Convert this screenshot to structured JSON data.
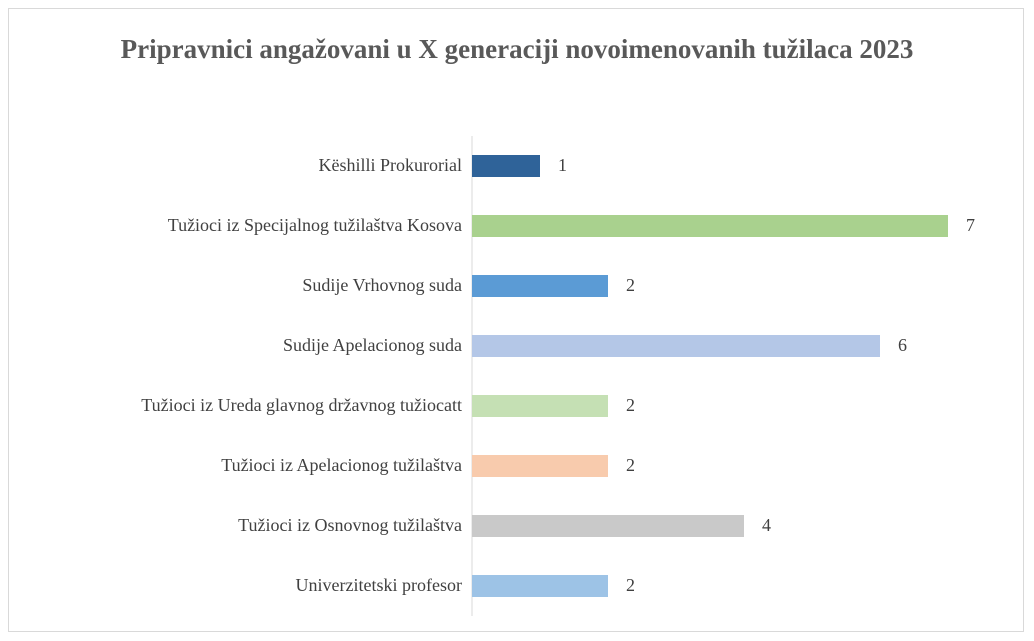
{
  "chart_data": {
    "type": "hbar",
    "title": "Pripravnici angažovani u X generaciji novoimenovanih tužilaca 2023",
    "categories": [
      "Këshilli Prokurorial",
      "Tužioci iz Specijalnog tužilaštva Kosova",
      "Sudije Vrhovnog suda",
      "Sudije Apelacionog suda",
      "Tužioci iz Ureda glavnog državnog tužiocatt",
      "Tužioci iz Apelacionog tužilaštva",
      "Tužioci iz Osnovnog tužilaštva",
      "Univerzitetski profesor"
    ],
    "values": [
      1,
      7,
      2,
      6,
      2,
      2,
      4,
      2
    ],
    "colors": [
      "#2f6399",
      "#a9d18e",
      "#5b9bd5",
      "#b4c7e7",
      "#c5e0b4",
      "#f8cbad",
      "#c9c9c9",
      "#9dc3e6"
    ],
    "xlim": [
      0,
      7
    ]
  }
}
